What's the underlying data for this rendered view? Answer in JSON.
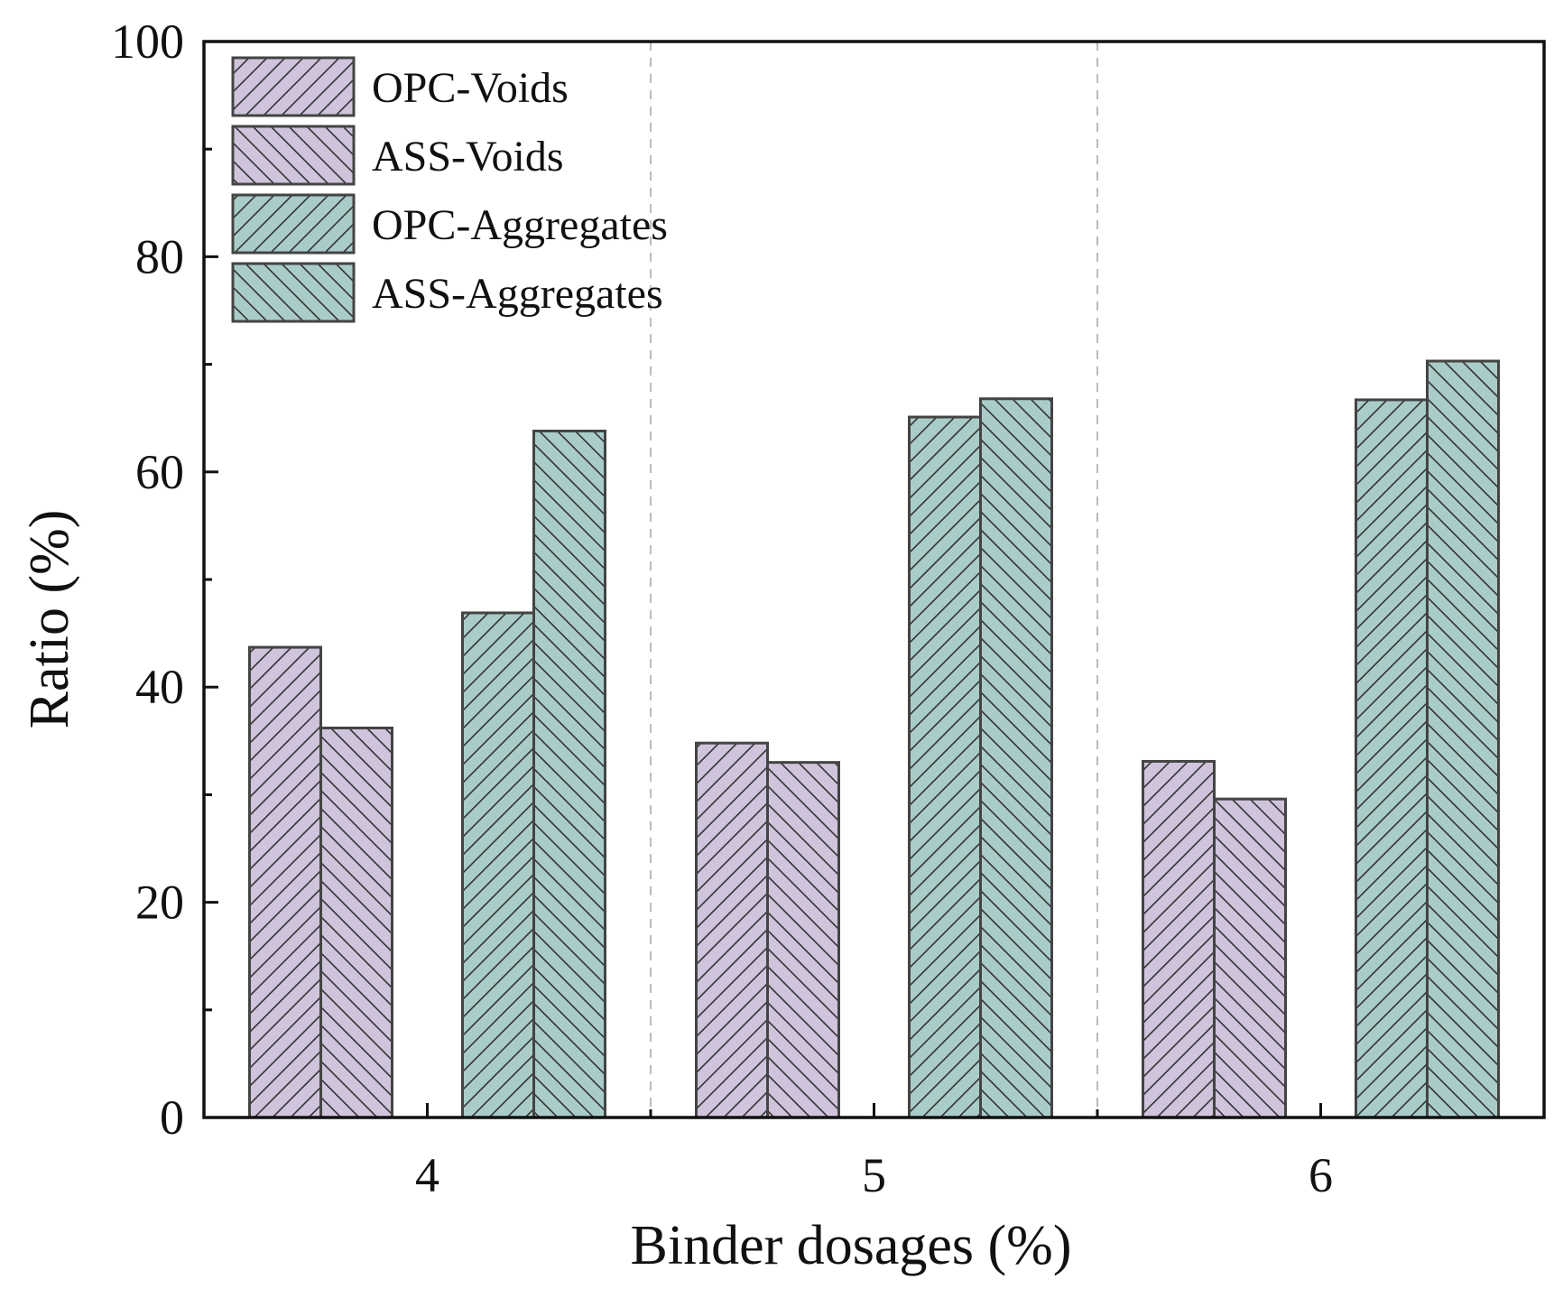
{
  "chart_data": {
    "type": "bar",
    "title": "",
    "xlabel": "Binder dosages (%)",
    "ylabel": "Ratio (%)",
    "categories": [
      "4",
      "5",
      "6"
    ],
    "ylim": [
      0,
      100
    ],
    "yticks": [
      0,
      20,
      40,
      60,
      80,
      100
    ],
    "grid": "vertical dashed separators between groups",
    "legend_position": "top-left",
    "series": [
      {
        "name": "OPC-Voids",
        "values": [
          43.7,
          34.8,
          33.1
        ],
        "color": "#cfc4dc",
        "hatch": "forward"
      },
      {
        "name": "ASS-Voids",
        "values": [
          36.2,
          33.0,
          29.6
        ],
        "color": "#cfc4dc",
        "hatch": "backward"
      },
      {
        "name": "OPC-Aggregates",
        "values": [
          46.9,
          65.1,
          66.7
        ],
        "color": "#a9ccc9",
        "hatch": "forward"
      },
      {
        "name": "ASS-Aggregates",
        "values": [
          63.8,
          66.8,
          70.3
        ],
        "color": "#a9ccc9",
        "hatch": "backward"
      }
    ]
  }
}
